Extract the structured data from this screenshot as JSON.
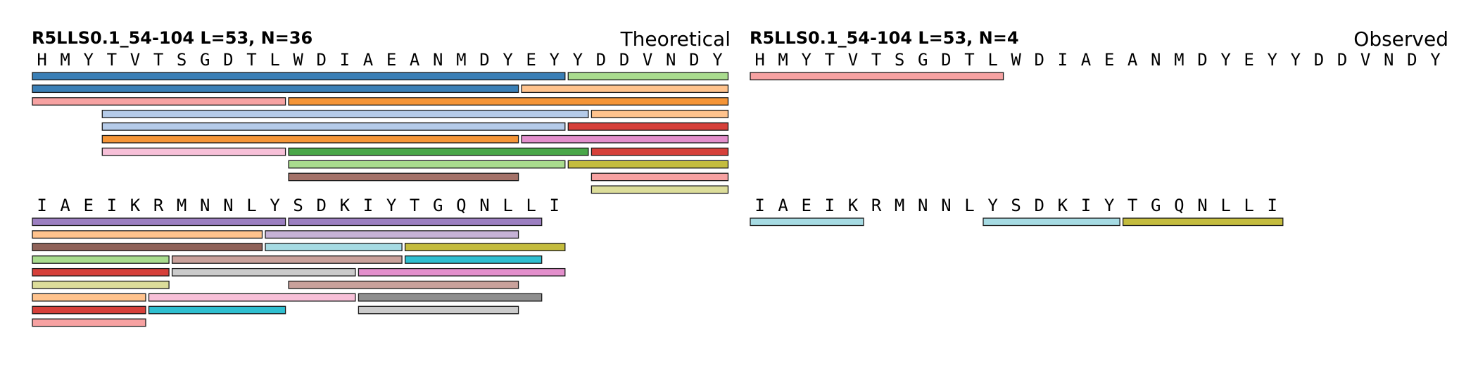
{
  "panels": [
    {
      "id": "theoretical",
      "title": "R5LLS0.1_54-104  L=53, N=36",
      "label": "Theoretical",
      "lines": [
        {
          "sequence": "HMYTVTSGDTLWDIAEANMDYEYYDDVNDY",
          "peptides": [
            {
              "start": 1,
              "end": 23,
              "row": 1,
              "color": "#3a7fb6"
            },
            {
              "start": 24,
              "end": 30,
              "row": 1,
              "color": "#a9dc8e"
            },
            {
              "start": 1,
              "end": 21,
              "row": 2,
              "color": "#3a7fb6"
            },
            {
              "start": 22,
              "end": 30,
              "row": 2,
              "color": "#ffc38d"
            },
            {
              "start": 1,
              "end": 11,
              "row": 3,
              "color": "#f7a2a2"
            },
            {
              "start": 12,
              "end": 30,
              "row": 3,
              "color": "#f59537"
            },
            {
              "start": 4,
              "end": 24,
              "row": 4,
              "color": "#b5cbe9"
            },
            {
              "start": 25,
              "end": 30,
              "row": 4,
              "color": "#ffc38d"
            },
            {
              "start": 4,
              "end": 23,
              "row": 5,
              "color": "#b5cbe9"
            },
            {
              "start": 24,
              "end": 30,
              "row": 5,
              "color": "#d6403a"
            },
            {
              "start": 4,
              "end": 21,
              "row": 6,
              "color": "#f59537"
            },
            {
              "start": 22,
              "end": 30,
              "row": 6,
              "color": "#e38fcc"
            },
            {
              "start": 4,
              "end": 11,
              "row": 7,
              "color": "#f7c0d8"
            },
            {
              "start": 12,
              "end": 24,
              "row": 7,
              "color": "#4aa749"
            },
            {
              "start": 25,
              "end": 30,
              "row": 7,
              "color": "#d6403a"
            },
            {
              "start": 12,
              "end": 23,
              "row": 8,
              "color": "#a9dc8e"
            },
            {
              "start": 24,
              "end": 30,
              "row": 8,
              "color": "#c4bc3e"
            },
            {
              "start": 12,
              "end": 21,
              "row": 9,
              "color": "#a47269"
            },
            {
              "start": 25,
              "end": 30,
              "row": 9,
              "color": "#f7a2a2"
            },
            {
              "start": 25,
              "end": 30,
              "row": 10,
              "color": "#dcdd9a"
            }
          ]
        },
        {
          "sequence": "IAEIKRMNNLYSDKIYTGQNLLI",
          "peptides": [
            {
              "start": 1,
              "end": 11,
              "row": 1,
              "color": "#9c7fc1"
            },
            {
              "start": 12,
              "end": 22,
              "row": 1,
              "color": "#9c7fc1"
            },
            {
              "start": 1,
              "end": 10,
              "row": 2,
              "color": "#ffc38d"
            },
            {
              "start": 11,
              "end": 21,
              "row": 2,
              "color": "#c6b2d6"
            },
            {
              "start": 1,
              "end": 10,
              "row": 3,
              "color": "#8f6259"
            },
            {
              "start": 11,
              "end": 16,
              "row": 3,
              "color": "#a6dbe3"
            },
            {
              "start": 17,
              "end": 23,
              "row": 3,
              "color": "#c4bc3e"
            },
            {
              "start": 1,
              "end": 6,
              "row": 4,
              "color": "#a9dc8e"
            },
            {
              "start": 7,
              "end": 16,
              "row": 4,
              "color": "#c9a19b"
            },
            {
              "start": 17,
              "end": 22,
              "row": 4,
              "color": "#2fbfd0"
            },
            {
              "start": 1,
              "end": 6,
              "row": 5,
              "color": "#d6403a"
            },
            {
              "start": 7,
              "end": 14,
              "row": 5,
              "color": "#cbcbcb"
            },
            {
              "start": 15,
              "end": 23,
              "row": 5,
              "color": "#e38fcc"
            },
            {
              "start": 1,
              "end": 6,
              "row": 6,
              "color": "#dcdd9a"
            },
            {
              "start": 12,
              "end": 21,
              "row": 6,
              "color": "#c9a19b"
            },
            {
              "start": 1,
              "end": 5,
              "row": 7,
              "color": "#ffc38d"
            },
            {
              "start": 6,
              "end": 14,
              "row": 7,
              "color": "#f7c0d8"
            },
            {
              "start": 15,
              "end": 22,
              "row": 7,
              "color": "#8e8e8e"
            },
            {
              "start": 1,
              "end": 5,
              "row": 8,
              "color": "#d6403a"
            },
            {
              "start": 6,
              "end": 11,
              "row": 8,
              "color": "#2fbfd0"
            },
            {
              "start": 15,
              "end": 21,
              "row": 8,
              "color": "#cbcbcb"
            },
            {
              "start": 1,
              "end": 5,
              "row": 9,
              "color": "#f7a2a2"
            }
          ]
        }
      ]
    },
    {
      "id": "observed",
      "title": "R5LLS0.1_54-104  L=53, N=4",
      "label": "Observed",
      "lines": [
        {
          "sequence": "HMYTVTSGDTLWDIAEANMDYEYYDDVNDY",
          "peptides": [
            {
              "start": 1,
              "end": 11,
              "row": 1,
              "color": "#f7a2a2"
            }
          ]
        },
        {
          "sequence": "IAEIKRMNNLYSDKIYTGQNLLI",
          "peptides": [
            {
              "start": 1,
              "end": 5,
              "row": 1,
              "color": "#a6dbe3"
            },
            {
              "start": 11,
              "end": 16,
              "row": 1,
              "color": "#a6dbe3"
            },
            {
              "start": 17,
              "end": 23,
              "row": 1,
              "color": "#c4bc3e"
            }
          ]
        }
      ]
    }
  ]
}
